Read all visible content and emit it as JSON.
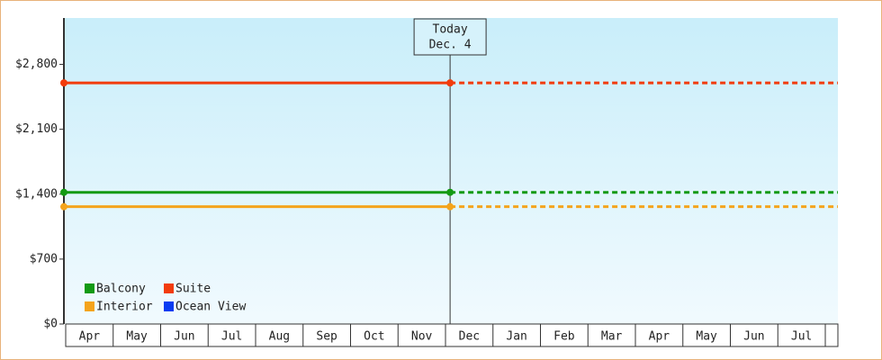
{
  "chart_data": {
    "type": "line",
    "categories": [
      "Apr",
      "May",
      "Jun",
      "Jul",
      "Aug",
      "Sep",
      "Oct",
      "Nov",
      "Dec",
      "Jan",
      "Feb",
      "Mar",
      "Apr",
      "May",
      "Jun",
      "Jul"
    ],
    "ylim": [
      0,
      3300
    ],
    "yticks": [
      {
        "value": 0,
        "label": "$0"
      },
      {
        "value": 700,
        "label": "$700"
      },
      {
        "value": 1400,
        "label": "$1,400"
      },
      {
        "value": 2100,
        "label": "$2,100"
      },
      {
        "value": 2800,
        "label": "$2,800"
      }
    ],
    "annotations": [
      "Today",
      "Dec. 4"
    ],
    "series": [
      {
        "name": "Balcony",
        "color": "#139a13",
        "value": 1420
      },
      {
        "name": "Suite",
        "color": "#f23c0c",
        "value": 2600
      },
      {
        "name": "Interior",
        "color": "#f4a41c",
        "value": 1265
      },
      {
        "name": "Ocean View",
        "color": "#0a3cf2",
        "value": null
      }
    ]
  }
}
